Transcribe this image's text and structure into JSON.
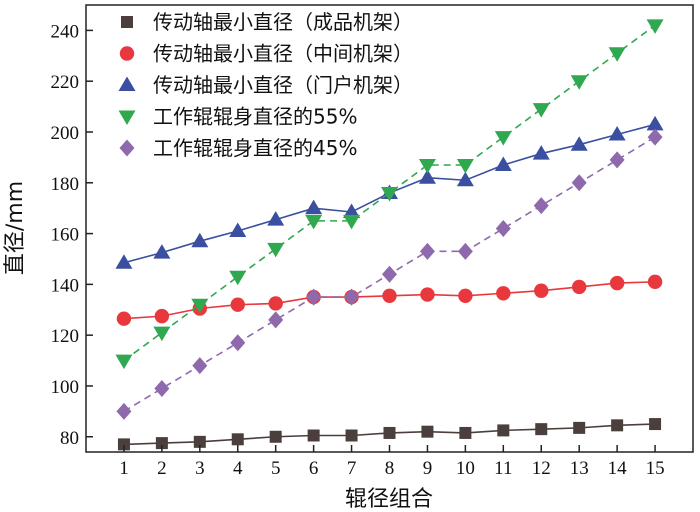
{
  "chart_data": {
    "type": "line",
    "xlabel": "辊径组合",
    "ylabel": "直径/mm",
    "x": [
      1,
      2,
      3,
      4,
      5,
      6,
      7,
      8,
      9,
      10,
      11,
      12,
      13,
      14,
      15
    ],
    "xlim": [
      0,
      16
    ],
    "ylim": [
      74,
      250
    ],
    "yticks": [
      80,
      100,
      120,
      140,
      160,
      180,
      200,
      220,
      240
    ],
    "grid": false,
    "legend_position": "top-left",
    "series": [
      {
        "name": "传动轴最小直径（成品机架）",
        "marker": "square",
        "color": "#4a3f3c",
        "line_style": "solid",
        "values": [
          77,
          77.5,
          78,
          79,
          80,
          80.5,
          80.5,
          81.5,
          82,
          81.5,
          82.5,
          83,
          83.5,
          84.5,
          85
        ]
      },
      {
        "name": "传动轴最小直径（中间机架）",
        "marker": "circle",
        "color": "#e8383d",
        "line_style": "solid",
        "values": [
          126.5,
          127.5,
          130.5,
          132,
          132.5,
          135,
          135,
          135.5,
          136,
          135.5,
          136.5,
          137.5,
          139,
          140.5,
          141
        ]
      },
      {
        "name": "传动轴最小直径（门户机架）",
        "marker": "triangle-up",
        "color": "#3a4fa0",
        "line_style": "solid",
        "values": [
          148.5,
          152.5,
          157,
          161,
          165.5,
          170,
          168.5,
          176,
          182,
          181,
          187,
          191.5,
          195,
          199,
          203
        ]
      },
      {
        "name": "工作辊辊身直径的55%",
        "marker": "triangle-down",
        "color": "#2fa84f",
        "line_style": "dashed",
        "values": [
          110,
          121,
          132,
          143,
          154,
          165,
          165,
          176,
          187,
          187,
          198,
          209,
          220,
          231,
          242
        ]
      },
      {
        "name": "工作辊辊身直径的45%",
        "marker": "diamond",
        "color": "#8e6aad",
        "line_style": "dashed",
        "values": [
          90,
          99,
          108,
          117,
          126,
          135,
          135,
          144,
          153,
          153,
          162,
          171,
          180,
          189,
          198
        ]
      }
    ]
  }
}
